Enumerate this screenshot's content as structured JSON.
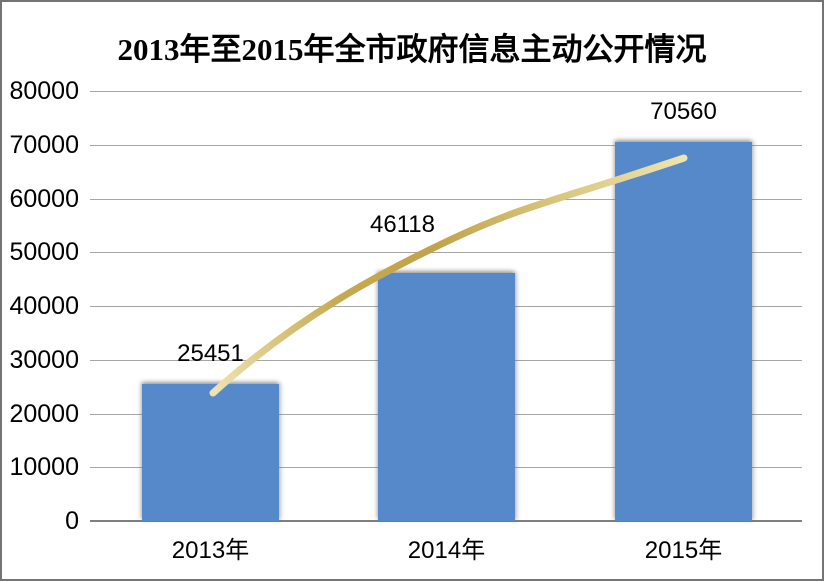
{
  "title": "2013年至2015年全市政府信息主动公开情况",
  "chart_data": {
    "type": "bar",
    "title": "2013年至2015年全市政府信息主动公开情况",
    "categories": [
      "2013年",
      "2014年",
      "2015年"
    ],
    "values": [
      25451,
      46118,
      70560
    ],
    "data_labels": [
      "25451",
      "46118",
      "70560"
    ],
    "xlabel": "",
    "ylabel": "",
    "ylim": [
      0,
      80000
    ],
    "ytick_interval": 10000,
    "yticks": [
      0,
      10000,
      20000,
      30000,
      40000,
      50000,
      60000,
      70000,
      80000
    ],
    "grid": true,
    "legend": "none",
    "bar_color": "#5689CA",
    "gridline_color": "#a6a6a6",
    "axis_line_color": "#7f7f7f",
    "text_color": "#000000",
    "background_color": "#ffffff",
    "frame_color": "#747474",
    "trend_line": {
      "shape": "curved-brush-stroke",
      "gradient_stops": [
        "#EFE3B2",
        "#C6A94F",
        "#C2A24A",
        "#D8C67E",
        "#F0E4B0"
      ]
    }
  }
}
